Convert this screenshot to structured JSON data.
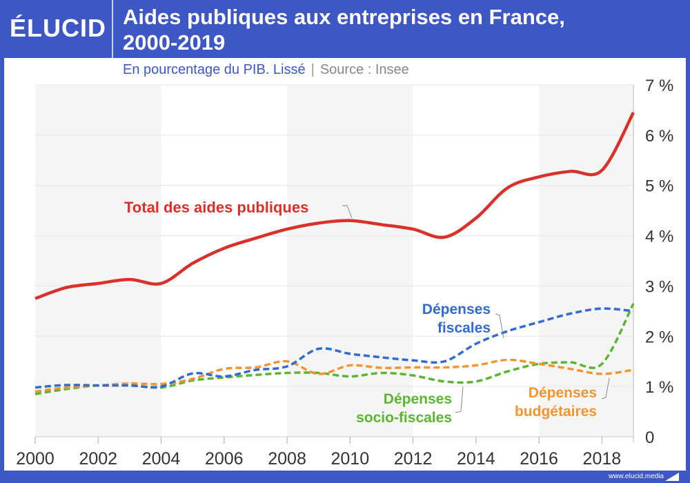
{
  "header": {
    "logo": "ÉLUCID",
    "title_line1": "Aides publiques aux entreprises en France,",
    "title_line2": "2000-2019",
    "subtitle": "En pourcentage du PIB. Lissé",
    "source": "Source : Insee"
  },
  "footer": {
    "url": "www.elucid.media"
  },
  "colors": {
    "frame": "#3d57c4",
    "total": "#d9302a",
    "fiscales": "#2f6bd1",
    "budgetaires": "#f39430",
    "socio_fiscales": "#5cb531"
  },
  "chart_data": {
    "type": "line",
    "title": "Aides publiques aux entreprises en France, 2000-2019",
    "subtitle": "En pourcentage du PIB. Lissé",
    "x": [
      2000,
      2001,
      2002,
      2003,
      2004,
      2005,
      2006,
      2007,
      2008,
      2009,
      2010,
      2011,
      2012,
      2013,
      2014,
      2015,
      2016,
      2017,
      2018,
      2019
    ],
    "x_ticks": [
      "2000",
      "2002",
      "2004",
      "2006",
      "2008",
      "2010",
      "2012",
      "2014",
      "2016",
      "2018"
    ],
    "y_ticks": [
      "0",
      "1 %",
      "2 %",
      "3 %",
      "4 %",
      "5 %",
      "6 %",
      "7 %"
    ],
    "ylim": [
      0,
      7
    ],
    "xlim": [
      2000,
      2019
    ],
    "y_axis_position": "right",
    "grid": true,
    "series": [
      {
        "key": "total",
        "name": "Total des aides publiques",
        "style": "solid",
        "values": [
          2.75,
          2.97,
          3.05,
          3.13,
          3.05,
          3.45,
          3.75,
          3.95,
          4.13,
          4.25,
          4.3,
          4.22,
          4.13,
          3.97,
          4.35,
          4.95,
          5.17,
          5.28,
          5.3,
          6.45
        ]
      },
      {
        "key": "fiscales",
        "name": "Dépenses fiscales",
        "name_lines": [
          "Dépenses",
          "fiscales"
        ],
        "style": "dashed",
        "values": [
          0.98,
          1.03,
          1.02,
          1.02,
          1.0,
          1.26,
          1.2,
          1.33,
          1.4,
          1.75,
          1.65,
          1.58,
          1.52,
          1.5,
          1.85,
          2.1,
          2.28,
          2.45,
          2.55,
          2.5
        ]
      },
      {
        "key": "budgetaires",
        "name": "Dépenses budgétaires",
        "name_lines": [
          "Dépenses",
          "budgétaires"
        ],
        "style": "dashed",
        "values": [
          0.9,
          0.98,
          1.02,
          1.06,
          1.05,
          1.15,
          1.35,
          1.38,
          1.5,
          1.25,
          1.42,
          1.37,
          1.38,
          1.38,
          1.42,
          1.53,
          1.45,
          1.35,
          1.25,
          1.33
        ]
      },
      {
        "key": "socio_fiscales",
        "name": "Dépenses socio-fiscales",
        "name_lines": [
          "Dépenses",
          "socio-fiscales"
        ],
        "style": "dashed",
        "values": [
          0.85,
          0.95,
          1.02,
          1.02,
          0.98,
          1.12,
          1.18,
          1.23,
          1.27,
          1.27,
          1.2,
          1.27,
          1.22,
          1.1,
          1.1,
          1.3,
          1.45,
          1.48,
          1.45,
          2.65
        ]
      }
    ]
  }
}
